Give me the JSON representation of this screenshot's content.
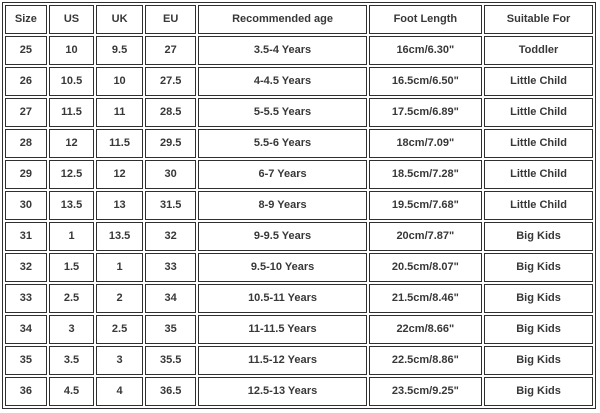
{
  "chart_data": {
    "type": "table",
    "columns": [
      "Size",
      "US",
      "UK",
      "EU",
      "Recommended age",
      "Foot Length",
      "Suitable For"
    ],
    "rows": [
      [
        "25",
        "10",
        "9.5",
        "27",
        "3.5-4 Years",
        "16cm/6.30\"",
        "Toddler"
      ],
      [
        "26",
        "10.5",
        "10",
        "27.5",
        "4-4.5 Years",
        "16.5cm/6.50\"",
        "Little Child"
      ],
      [
        "27",
        "11.5",
        "11",
        "28.5",
        "5-5.5 Years",
        "17.5cm/6.89\"",
        "Little Child"
      ],
      [
        "28",
        "12",
        "11.5",
        "29.5",
        "5.5-6 Years",
        "18cm/7.09\"",
        "Little Child"
      ],
      [
        "29",
        "12.5",
        "12",
        "30",
        "6-7 Years",
        "18.5cm/7.28\"",
        "Little Child"
      ],
      [
        "30",
        "13.5",
        "13",
        "31.5",
        "8-9 Years",
        "19.5cm/7.68\"",
        "Little Child"
      ],
      [
        "31",
        "1",
        "13.5",
        "32",
        "9-9.5 Years",
        "20cm/7.87\"",
        "Big Kids"
      ],
      [
        "32",
        "1.5",
        "1",
        "33",
        "9.5-10 Years",
        "20.5cm/8.07\"",
        "Big Kids"
      ],
      [
        "33",
        "2.5",
        "2",
        "34",
        "10.5-11 Years",
        "21.5cm/8.46\"",
        "Big Kids"
      ],
      [
        "34",
        "3",
        "2.5",
        "35",
        "11-11.5 Years",
        "22cm/8.66\"",
        "Big Kids"
      ],
      [
        "35",
        "3.5",
        "3",
        "35.5",
        "11.5-12 Years",
        "22.5cm/8.86\"",
        "Big Kids"
      ],
      [
        "36",
        "4.5",
        "4",
        "36.5",
        "12.5-13 Years",
        "23.5cm/9.25\"",
        "Big Kids"
      ]
    ],
    "grid": true,
    "legend_position": "none"
  },
  "colors": {
    "text": "#383838",
    "border": "#2f2f2f",
    "background": "#ffffff"
  }
}
